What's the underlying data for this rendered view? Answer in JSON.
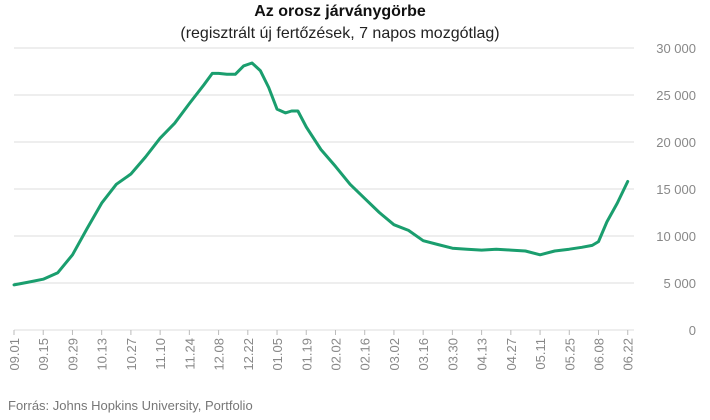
{
  "chart_data": {
    "type": "line",
    "title": "Az orosz járványgörbe",
    "subtitle": "(regisztrált új fertőzések, 7 napos mozgótlag)",
    "source": "Forrás: Johns Hopkins University, Portfolio",
    "line_color": "#1a9e6e",
    "grid": true,
    "ylim": [
      0,
      30000
    ],
    "y_ticks": [
      {
        "value": 0,
        "label": "0"
      },
      {
        "value": 5000,
        "label": "5 000"
      },
      {
        "value": 10000,
        "label": "10 000"
      },
      {
        "value": 15000,
        "label": "15 000"
      },
      {
        "value": 20000,
        "label": "20 000"
      },
      {
        "value": 25000,
        "label": "25 000"
      },
      {
        "value": 30000,
        "label": "30 000"
      }
    ],
    "x_range": [
      "2020-09-01",
      "2021-06-25"
    ],
    "x_ticks": [
      {
        "date": "2020-09-01",
        "label": "09.01"
      },
      {
        "date": "2020-09-15",
        "label": "09.15"
      },
      {
        "date": "2020-09-29",
        "label": "09.29"
      },
      {
        "date": "2020-10-13",
        "label": "10.13"
      },
      {
        "date": "2020-10-27",
        "label": "10.27"
      },
      {
        "date": "2020-11-10",
        "label": "11.10"
      },
      {
        "date": "2020-11-24",
        "label": "11.24"
      },
      {
        "date": "2020-12-08",
        "label": "12.08"
      },
      {
        "date": "2020-12-22",
        "label": "12.22"
      },
      {
        "date": "2021-01-05",
        "label": "01.05"
      },
      {
        "date": "2021-01-19",
        "label": "01.19"
      },
      {
        "date": "2021-02-02",
        "label": "02.02"
      },
      {
        "date": "2021-02-16",
        "label": "02.16"
      },
      {
        "date": "2021-03-02",
        "label": "03.02"
      },
      {
        "date": "2021-03-16",
        "label": "03.16"
      },
      {
        "date": "2021-03-30",
        "label": "03.30"
      },
      {
        "date": "2021-04-13",
        "label": "04.13"
      },
      {
        "date": "2021-04-27",
        "label": "04.27"
      },
      {
        "date": "2021-05-11",
        "label": "05.11"
      },
      {
        "date": "2021-05-25",
        "label": "05.25"
      },
      {
        "date": "2021-06-08",
        "label": "06.08"
      },
      {
        "date": "2021-06-22",
        "label": "06.22"
      }
    ],
    "series": [
      {
        "points": [
          [
            "2020-09-01",
            4800
          ],
          [
            "2020-09-08",
            5100
          ],
          [
            "2020-09-15",
            5400
          ],
          [
            "2020-09-22",
            6100
          ],
          [
            "2020-09-29",
            8000
          ],
          [
            "2020-10-06",
            10800
          ],
          [
            "2020-10-13",
            13500
          ],
          [
            "2020-10-20",
            15500
          ],
          [
            "2020-10-27",
            16600
          ],
          [
            "2020-11-03",
            18400
          ],
          [
            "2020-11-10",
            20400
          ],
          [
            "2020-11-17",
            22000
          ],
          [
            "2020-11-24",
            24100
          ],
          [
            "2020-12-01",
            26100
          ],
          [
            "2020-12-05",
            27300
          ],
          [
            "2020-12-08",
            27300
          ],
          [
            "2020-12-12",
            27200
          ],
          [
            "2020-12-16",
            27200
          ],
          [
            "2020-12-20",
            28100
          ],
          [
            "2020-12-24",
            28400
          ],
          [
            "2020-12-28",
            27600
          ],
          [
            "2021-01-01",
            25800
          ],
          [
            "2021-01-05",
            23500
          ],
          [
            "2021-01-09",
            23100
          ],
          [
            "2021-01-12",
            23300
          ],
          [
            "2021-01-15",
            23300
          ],
          [
            "2021-01-19",
            21600
          ],
          [
            "2021-01-26",
            19200
          ],
          [
            "2021-02-02",
            17400
          ],
          [
            "2021-02-09",
            15500
          ],
          [
            "2021-02-16",
            14000
          ],
          [
            "2021-02-23",
            12500
          ],
          [
            "2021-03-02",
            11200
          ],
          [
            "2021-03-09",
            10600
          ],
          [
            "2021-03-16",
            9500
          ],
          [
            "2021-03-23",
            9100
          ],
          [
            "2021-03-30",
            8700
          ],
          [
            "2021-04-06",
            8600
          ],
          [
            "2021-04-13",
            8500
          ],
          [
            "2021-04-20",
            8600
          ],
          [
            "2021-04-27",
            8500
          ],
          [
            "2021-05-04",
            8400
          ],
          [
            "2021-05-11",
            8000
          ],
          [
            "2021-05-18",
            8400
          ],
          [
            "2021-05-25",
            8600
          ],
          [
            "2021-05-31",
            8800
          ],
          [
            "2021-06-05",
            9000
          ],
          [
            "2021-06-08",
            9400
          ],
          [
            "2021-06-12",
            11500
          ],
          [
            "2021-06-17",
            13500
          ],
          [
            "2021-06-22",
            15800
          ]
        ]
      }
    ]
  }
}
